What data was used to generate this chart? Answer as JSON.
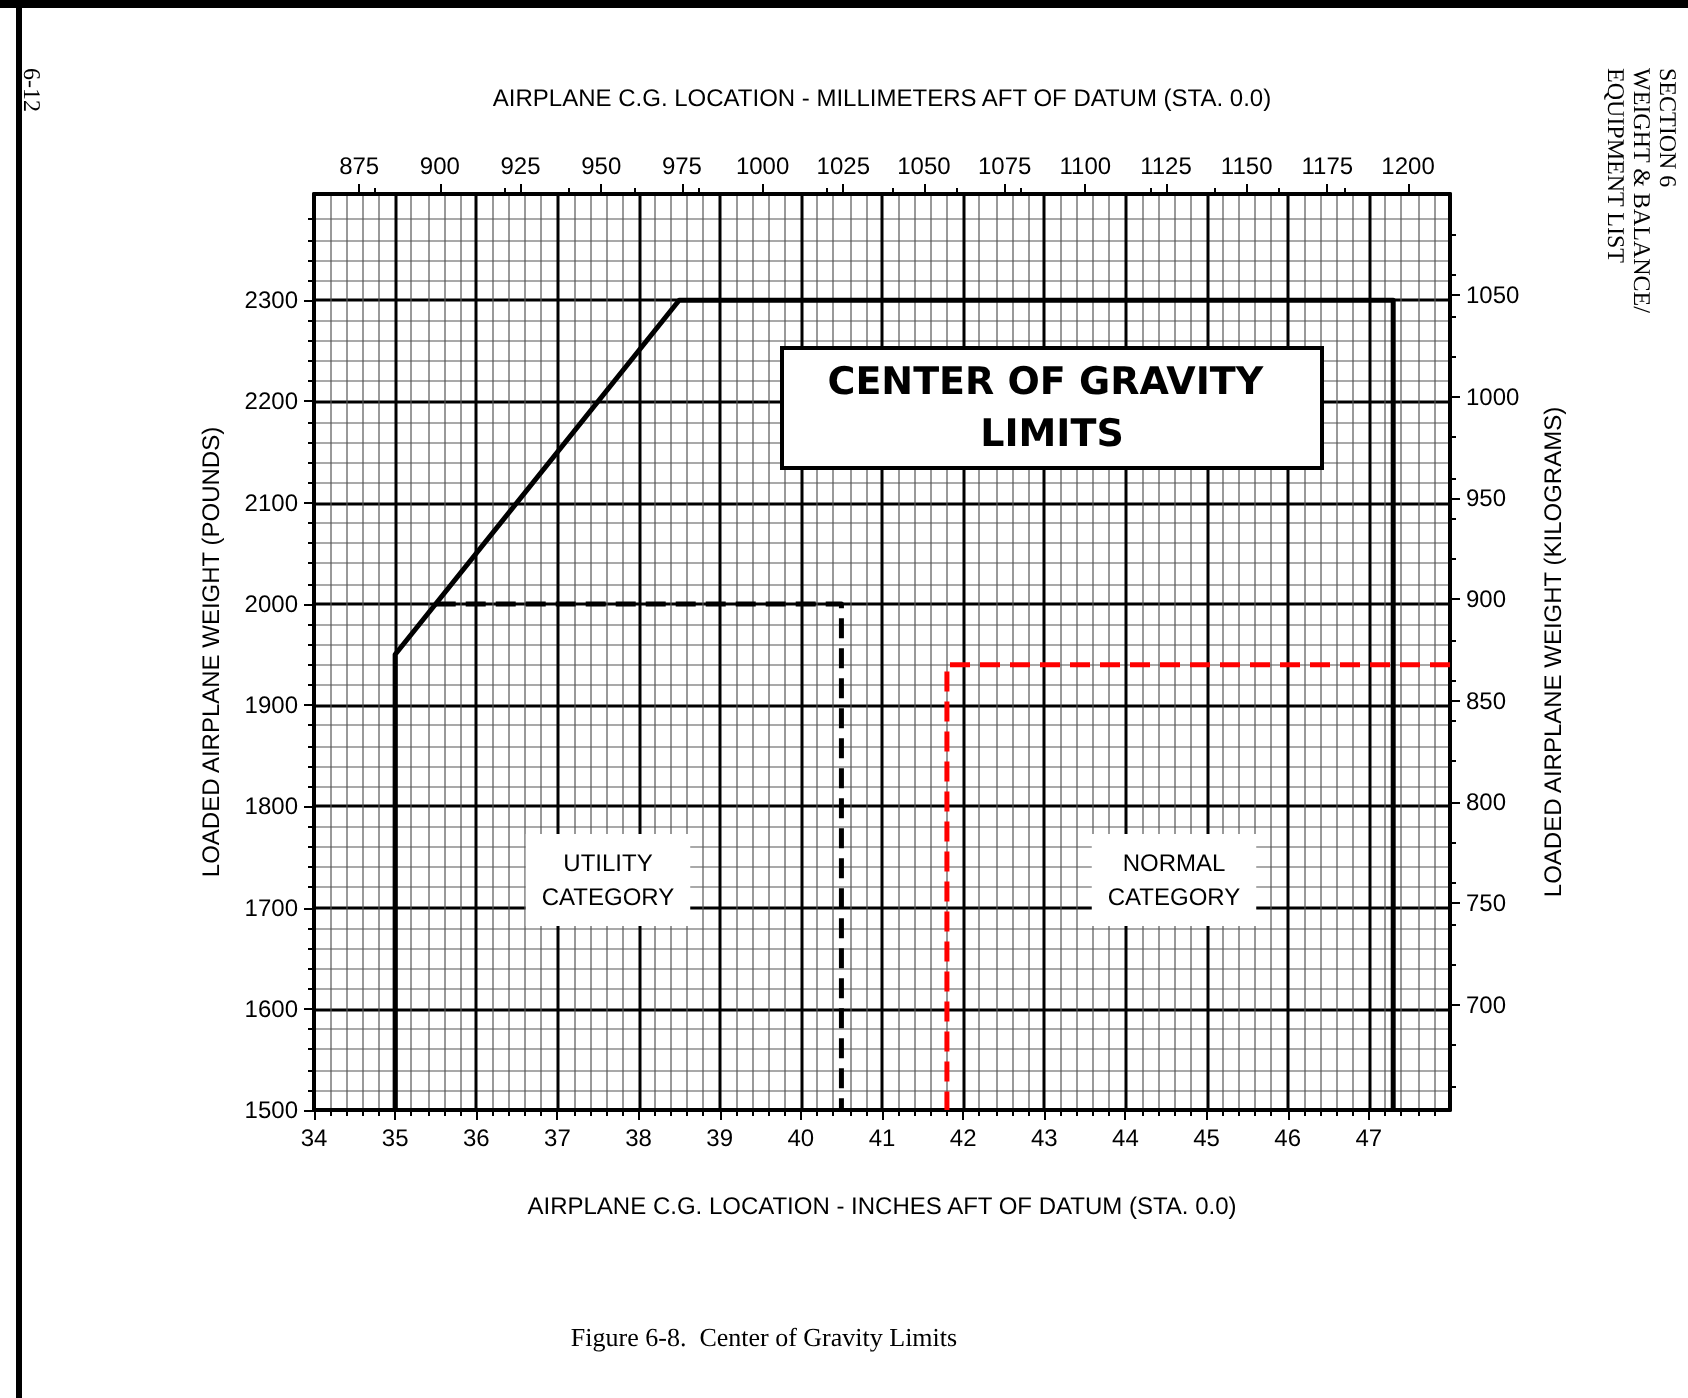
{
  "chart_data": {
    "type": "line",
    "title": "CENTER OF GRAVITY LIMITS",
    "xlabel": "AIRPLANE C.G. LOCATION - INCHES AFT OF DATUM (STA. 0.0)",
    "x2label": "AIRPLANE C.G. LOCATION - MILLIMETERS AFT OF DATUM (STA. 0.0)",
    "ylabel": "LOADED AIRPLANE WEIGHT (POUNDS)",
    "y2label": "LOADED AIRPLANE WEIGHT (KILOGRAMS)",
    "xlim": [
      34,
      48
    ],
    "xticks": [
      34,
      35,
      36,
      37,
      38,
      39,
      40,
      41,
      42,
      43,
      44,
      45,
      46,
      47
    ],
    "x2lim": [
      861,
      1213
    ],
    "x2ticks": [
      875,
      900,
      925,
      950,
      975,
      1000,
      1025,
      1050,
      1075,
      1100,
      1125,
      1150,
      1175,
      1200
    ],
    "ylim": [
      1500,
      2405
    ],
    "yticks": [
      1500,
      1600,
      1700,
      1800,
      1900,
      2000,
      2100,
      2200,
      2300
    ],
    "y2lim": [
      648,
      1100
    ],
    "y2ticks": [
      700,
      750,
      800,
      850,
      900,
      950,
      1000,
      1050
    ],
    "grid": true,
    "marker": "none",
    "series": [
      {
        "color": "#000000",
        "line_style": "solid",
        "x": [
          35,
          35,
          38.5,
          47.3,
          47.3
        ],
        "values": [
          1500,
          1950,
          2300,
          2300,
          1500
        ]
      },
      {
        "color": "#000000",
        "line_style": "dashed",
        "x": [
          35.5,
          40.5,
          40.5
        ],
        "values": [
          2000,
          2000,
          1500
        ]
      },
      {
        "color": "#ff0000",
        "line_style": "dashed",
        "x": [
          48,
          41.8,
          41.8
        ],
        "values": [
          1940,
          1940,
          1500
        ]
      }
    ],
    "annotations": [
      "UTILITY CATEGORY",
      "NORMAL CATEGORY",
      "Figure 6-8.  Center of Gravity Limits",
      "6-12",
      "SECTION 6",
      "WEIGHT & BALANCE/",
      "EQUIPMENT LIST"
    ]
  }
}
